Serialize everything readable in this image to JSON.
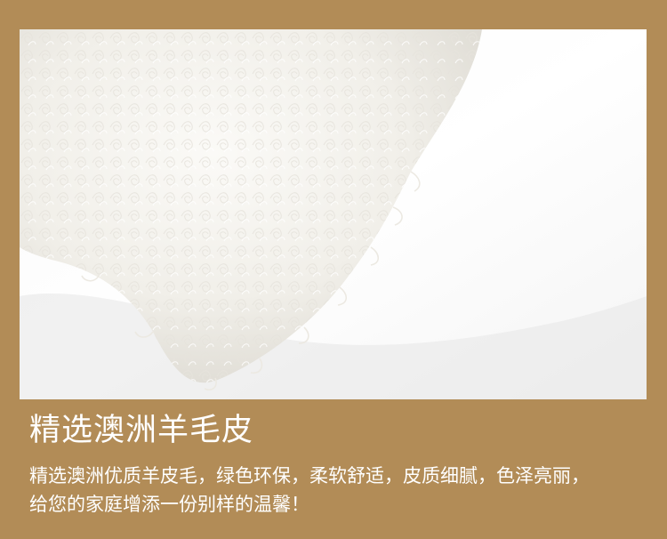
{
  "product": {
    "image_subject": "white-curly-lamb-fur-pillow",
    "headline": "精选澳洲羊毛皮",
    "description_lines": [
      "精选澳洲优质羊皮毛，绿色环保，柔软舒适，皮质细腻，色泽亮丽，",
      "给您的家庭增添一份别样的温馨！"
    ]
  },
  "colors": {
    "background": "#b28c57",
    "text": "#ffffff",
    "fur": "#f7f6f2",
    "fur_shadow": "#d9d7d1"
  }
}
